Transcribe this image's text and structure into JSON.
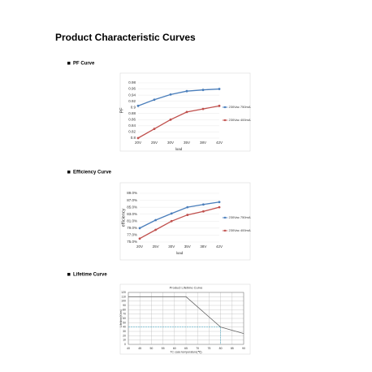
{
  "title": "Product Characteristic Curves",
  "headings": [
    "PF Curve",
    "Efficiency Curve",
    "Lifetime Curve"
  ],
  "chart_data": [
    {
      "type": "line",
      "y_label": "PF",
      "x_label": "load",
      "categories": [
        "20V",
        "25V",
        "30V",
        "35V",
        "38V",
        "42V"
      ],
      "series": [
        {
          "name": "230Vac 750mA",
          "color": "#4a7ebb",
          "values": [
            0.905,
            0.925,
            0.942,
            0.953,
            0.957,
            0.96
          ]
        },
        {
          "name": "230Vac 400mA",
          "color": "#c0504d",
          "values": [
            0.8,
            0.83,
            0.86,
            0.885,
            0.895,
            0.905
          ]
        }
      ],
      "ylim": [
        0.8,
        0.98
      ],
      "yticks": [
        0.8,
        0.82,
        0.84,
        0.86,
        0.88,
        0.9,
        0.92,
        0.94,
        0.96,
        0.98
      ],
      "grid": true
    },
    {
      "type": "line",
      "y_label": "efficiency",
      "x_label": "load",
      "categories": [
        "20V",
        "25V",
        "30V",
        "35V",
        "38V",
        "42V"
      ],
      "series": [
        {
          "name": "230Vac 750mA",
          "color": "#4a7ebb",
          "values": [
            79.0,
            81.3,
            83.2,
            85.0,
            85.8,
            86.5
          ]
        },
        {
          "name": "230Vac 400mA",
          "color": "#c0504d",
          "values": [
            76.0,
            78.5,
            81.0,
            82.8,
            83.8,
            85.0
          ]
        }
      ],
      "ylim": [
        75,
        89
      ],
      "yticks": [
        {
          "value": 75,
          "label": "75.0%"
        },
        {
          "value": 77,
          "label": "77.0%"
        },
        {
          "value": 79,
          "label": "79.0%"
        },
        {
          "value": 81,
          "label": "81.0%"
        },
        {
          "value": 83,
          "label": "83.0%"
        },
        {
          "value": 85,
          "label": "85.0%"
        },
        {
          "value": 87,
          "label": "87.0%"
        },
        {
          "value": 89,
          "label": "89.0%"
        }
      ],
      "grid": true
    },
    {
      "type": "line",
      "title": "Product Lifetime Curve",
      "y_label": "Lifetime(Khrs)",
      "x_label": "TC case temperature(℃)",
      "x": [
        40,
        65,
        80,
        90
      ],
      "series": [
        {
          "color": "#666666",
          "values": [
            110,
            110,
            40,
            25
          ]
        }
      ],
      "reference_point": [
        80,
        40
      ],
      "reference_color": "#4bacc6",
      "xlim": [
        40,
        90
      ],
      "xticks": [
        40,
        45,
        50,
        55,
        60,
        65,
        70,
        75,
        80,
        85,
        90
      ],
      "ylim": [
        0,
        120
      ],
      "yticks": [
        0,
        10,
        20,
        30,
        40,
        50,
        60,
        70,
        80,
        90,
        100,
        110,
        120
      ],
      "grid": true,
      "xgrid": true
    }
  ]
}
